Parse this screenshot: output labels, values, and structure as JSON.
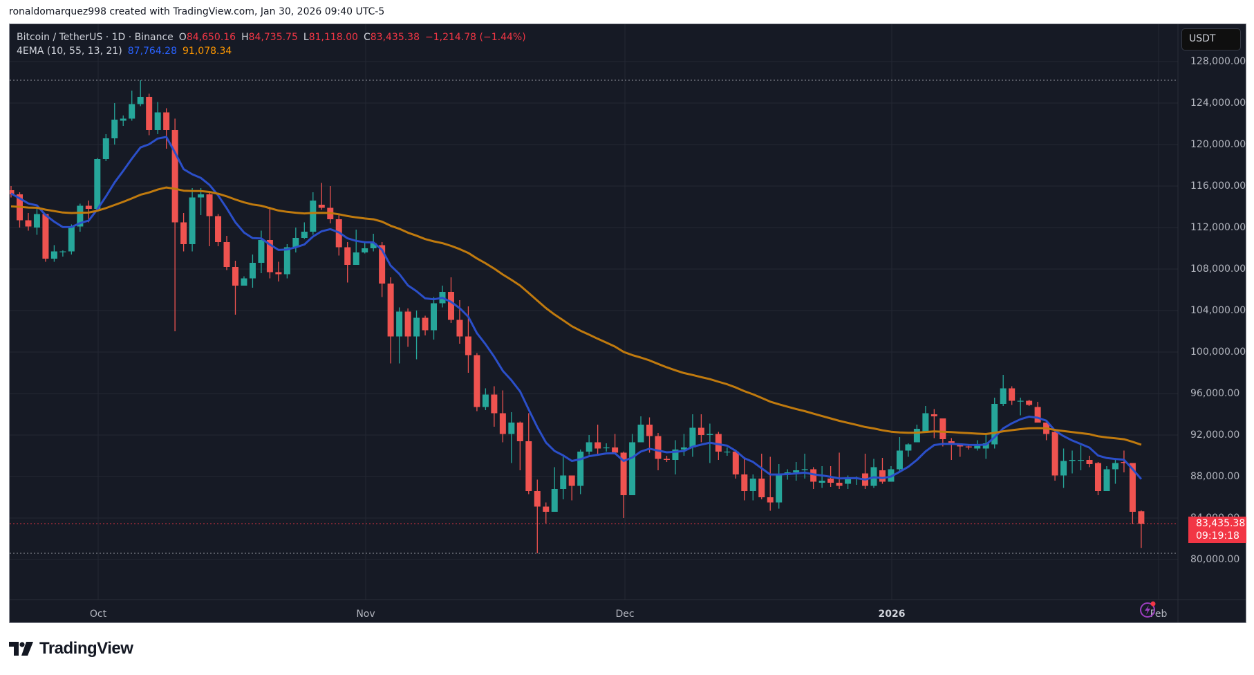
{
  "header": {
    "credit": "ronaldomarquez998 created with TradingView.com, Jan 30, 2026 09:40 UTC-5"
  },
  "legend": {
    "symbol": "Bitcoin / TetherUS · 1D · Binance",
    "open_label": "O",
    "open": "84,650.16",
    "high_label": "H",
    "high": "84,735.75",
    "low_label": "L",
    "low": "81,118.00",
    "close_label": "C",
    "close": "83,435.38",
    "change": "−1,214.78 (−1.44%)",
    "indicator": "4EMA (10, 55, 13, 21)",
    "ema_fast_value": "87,764.28",
    "ema_slow_value": "91,078.34"
  },
  "price_axis": {
    "currency": "USDT",
    "ticks": [
      "128,000.00",
      "124,000.00",
      "120,000.00",
      "116,000.00",
      "112,000.00",
      "108,000.00",
      "104,000.00",
      "100,000.00",
      "96,000.00",
      "92,000.00",
      "88,000.00",
      "84,000.00",
      "80,000.00"
    ],
    "last_price": "83,435.38",
    "countdown": "09:19:18"
  },
  "time_axis": {
    "labels": [
      {
        "text": "Oct",
        "bold": false
      },
      {
        "text": "Nov",
        "bold": false
      },
      {
        "text": "Dec",
        "bold": false
      },
      {
        "text": "2026",
        "bold": true
      },
      {
        "text": "Feb",
        "bold": false
      }
    ]
  },
  "footer": {
    "brand": "TradingView"
  },
  "colors": {
    "background": "#161a25",
    "grid": "#242833",
    "up": "#26a69a",
    "down": "#ef5350",
    "ema_fast": "#2b4fc9",
    "ema_slow": "#c07a0e",
    "last_price": "#f23645"
  },
  "chart_data": {
    "type": "candlestick",
    "title": "Bitcoin / TetherUS · 1D · Binance",
    "xlabel": "",
    "ylabel": "USDT",
    "ylim": [
      76000,
      130000
    ],
    "grid": true,
    "start_date": "2025-09-21",
    "end_date": "2026-01-30",
    "x_tick_labels": [
      "Oct",
      "Nov",
      "Dec",
      "2026",
      "Feb"
    ],
    "y_tick_labels": [
      "128,000.00",
      "124,000.00",
      "120,000.00",
      "116,000.00",
      "112,000.00",
      "108,000.00",
      "104,000.00",
      "100,000.00",
      "96,000.00",
      "92,000.00",
      "88,000.00",
      "84,000.00",
      "80,000.00"
    ],
    "ohlc_fields": [
      "open",
      "high",
      "low",
      "close"
    ],
    "candles": [
      [
        115600,
        116000,
        114900,
        115200
      ],
      [
        115200,
        115400,
        112000,
        112700
      ],
      [
        112700,
        113400,
        111700,
        112100
      ],
      [
        112000,
        114000,
        111300,
        113300
      ],
      [
        113300,
        113300,
        108700,
        109000
      ],
      [
        109000,
        110300,
        108700,
        109700
      ],
      [
        109700,
        109800,
        109200,
        109700
      ],
      [
        109700,
        112300,
        109400,
        112100
      ],
      [
        112100,
        114300,
        111600,
        114100
      ],
      [
        114100,
        114600,
        112500,
        113800
      ],
      [
        113800,
        118700,
        113800,
        118600
      ],
      [
        118600,
        121000,
        118400,
        120600
      ],
      [
        120600,
        124000,
        120000,
        122400
      ],
      [
        122300,
        122800,
        121800,
        122500
      ],
      [
        122500,
        125200,
        122300,
        123900
      ],
      [
        123900,
        126200,
        123700,
        124600
      ],
      [
        124600,
        124900,
        120900,
        121400
      ],
      [
        121400,
        124100,
        121000,
        123100
      ],
      [
        123100,
        123500,
        119600,
        121400
      ],
      [
        121400,
        122500,
        102000,
        112500
      ],
      [
        112500,
        113400,
        109700,
        110400
      ],
      [
        110400,
        115800,
        109700,
        114900
      ],
      [
        114900,
        115800,
        113200,
        115200
      ],
      [
        115200,
        115400,
        110200,
        113100
      ],
      [
        113100,
        113300,
        110200,
        110600
      ],
      [
        110600,
        111200,
        107900,
        108200
      ],
      [
        108200,
        108800,
        103600,
        106400
      ],
      [
        106400,
        107300,
        106400,
        107100
      ],
      [
        107100,
        109400,
        106200,
        108600
      ],
      [
        108600,
        111700,
        107600,
        110800
      ],
      [
        110800,
        114000,
        107100,
        107700
      ],
      [
        107700,
        108700,
        106800,
        107500
      ],
      [
        107500,
        110400,
        107100,
        110100
      ],
      [
        110100,
        112000,
        109600,
        111000
      ],
      [
        111000,
        112500,
        110900,
        111600
      ],
      [
        111600,
        115400,
        111300,
        114600
      ],
      [
        114200,
        116300,
        113700,
        113900
      ],
      [
        113900,
        116000,
        112400,
        112800
      ],
      [
        112800,
        113200,
        109300,
        110100
      ],
      [
        110100,
        110600,
        106700,
        108400
      ],
      [
        108400,
        111800,
        108400,
        109600
      ],
      [
        109600,
        110500,
        109500,
        110000
      ],
      [
        110000,
        111400,
        109700,
        110500
      ],
      [
        110300,
        110600,
        105300,
        106600
      ],
      [
        106600,
        107200,
        98900,
        101500
      ],
      [
        101500,
        104300,
        98900,
        103900
      ],
      [
        103900,
        104200,
        100500,
        101500
      ],
      [
        101500,
        104000,
        99300,
        103300
      ],
      [
        103300,
        103500,
        101600,
        102100
      ],
      [
        102100,
        105300,
        101200,
        104700
      ],
      [
        104700,
        106400,
        104300,
        105800
      ],
      [
        105800,
        107200,
        102800,
        103100
      ],
      [
        103100,
        105000,
        100800,
        101500
      ],
      [
        101500,
        104400,
        98000,
        99700
      ],
      [
        99700,
        99900,
        94300,
        94700
      ],
      [
        94700,
        96500,
        94400,
        95900
      ],
      [
        95900,
        96700,
        92800,
        94100
      ],
      [
        94100,
        96300,
        91300,
        92100
      ],
      [
        92100,
        94200,
        89300,
        93200
      ],
      [
        93200,
        93300,
        88600,
        91400
      ],
      [
        91400,
        94100,
        86300,
        86600
      ],
      [
        86600,
        87700,
        80600,
        85100
      ],
      [
        85100,
        85500,
        83500,
        84600
      ],
      [
        84600,
        88900,
        84600,
        86800
      ],
      [
        86800,
        89900,
        85800,
        88100
      ],
      [
        88100,
        88100,
        85700,
        87100
      ],
      [
        87100,
        90600,
        86300,
        90400
      ],
      [
        90400,
        92000,
        90100,
        91300
      ],
      [
        91300,
        93000,
        90200,
        90700
      ],
      [
        90800,
        91200,
        90400,
        90800
      ],
      [
        90800,
        92100,
        90500,
        90300
      ],
      [
        90300,
        90400,
        84000,
        86200
      ],
      [
        86200,
        92100,
        86200,
        91300
      ],
      [
        91300,
        93800,
        91800,
        93000
      ],
      [
        93000,
        93700,
        90300,
        91900
      ],
      [
        91900,
        92200,
        88600,
        89700
      ],
      [
        89700,
        90000,
        89400,
        89600
      ],
      [
        89600,
        91500,
        88200,
        90600
      ],
      [
        90600,
        92100,
        90000,
        90800
      ],
      [
        90800,
        94000,
        89900,
        92700
      ],
      [
        92700,
        94000,
        91300,
        92000
      ],
      [
        92000,
        93100,
        89300,
        92100
      ],
      [
        92100,
        92300,
        89600,
        90400
      ],
      [
        90400,
        90800,
        90000,
        90400
      ],
      [
        90400,
        90400,
        87800,
        88200
      ],
      [
        88200,
        89800,
        85700,
        86600
      ],
      [
        86600,
        88200,
        85700,
        87800
      ],
      [
        87800,
        90200,
        85800,
        86000
      ],
      [
        86000,
        89900,
        84700,
        85500
      ],
      [
        85500,
        89200,
        84900,
        88200
      ],
      [
        88200,
        88700,
        87700,
        88400
      ],
      [
        88400,
        89400,
        87600,
        88600
      ],
      [
        88600,
        90200,
        87800,
        88700
      ],
      [
        88700,
        88900,
        86800,
        87500
      ],
      [
        87400,
        89000,
        86900,
        87600
      ],
      [
        87800,
        89000,
        87000,
        87400
      ],
      [
        87400,
        90300,
        86800,
        87100
      ],
      [
        87300,
        88100,
        86800,
        87900
      ],
      [
        87800,
        88000,
        87200,
        87900
      ],
      [
        88300,
        90200,
        86800,
        87100
      ],
      [
        87100,
        89700,
        86900,
        88900
      ],
      [
        88600,
        89800,
        87300,
        87500
      ],
      [
        87500,
        89000,
        87500,
        88700
      ],
      [
        88700,
        91800,
        88400,
        90500
      ],
      [
        90500,
        91200,
        89900,
        91100
      ],
      [
        91300,
        93000,
        91300,
        92600
      ],
      [
        92300,
        94800,
        92200,
        94100
      ],
      [
        94000,
        94500,
        91700,
        93800
      ],
      [
        93600,
        93600,
        90900,
        91600
      ],
      [
        91400,
        91700,
        89600,
        91200
      ],
      [
        91100,
        91100,
        89900,
        90900
      ],
      [
        90900,
        91000,
        90600,
        90800
      ],
      [
        90700,
        91500,
        90500,
        91000
      ],
      [
        90700,
        92100,
        89700,
        91200
      ],
      [
        91100,
        95600,
        90700,
        95000
      ],
      [
        95000,
        97800,
        94800,
        96500
      ],
      [
        96500,
        96700,
        94900,
        95300
      ],
      [
        95300,
        95600,
        93900,
        95300
      ],
      [
        95300,
        95400,
        94800,
        94900
      ],
      [
        94700,
        95200,
        93200,
        93200
      ],
      [
        93200,
        93200,
        91500,
        92100
      ],
      [
        92300,
        92600,
        87600,
        88100
      ],
      [
        88100,
        90700,
        86900,
        89500
      ],
      [
        89500,
        90500,
        88300,
        89600
      ],
      [
        89600,
        91000,
        88600,
        89600
      ],
      [
        89600,
        90000,
        88900,
        89200
      ],
      [
        89300,
        89400,
        86200,
        86600
      ],
      [
        86600,
        89000,
        86600,
        88700
      ],
      [
        88700,
        89600,
        87300,
        89300
      ],
      [
        89400,
        90500,
        88400,
        89300
      ],
      [
        89300,
        89300,
        83400,
        84600
      ],
      [
        84650.16,
        84735.75,
        81118.0,
        83435.38
      ]
    ],
    "series": [
      {
        "name": "EMA 10",
        "color": "#2b4fc9",
        "period": 10,
        "seed": 115300,
        "last_value": 87764.28
      },
      {
        "name": "EMA 55",
        "color": "#c07a0e",
        "period": 55,
        "seed": 114000,
        "last_value": 91078.34
      }
    ],
    "reference_lines": [
      {
        "name": "visible-high",
        "price": 126200,
        "style": "dotted",
        "color": "#9598a1"
      },
      {
        "name": "visible-low",
        "price": 80600,
        "style": "dotted",
        "color": "#9598a1"
      },
      {
        "name": "last-price",
        "price": 83435.38,
        "style": "dotted",
        "color": "#f23645"
      }
    ]
  }
}
